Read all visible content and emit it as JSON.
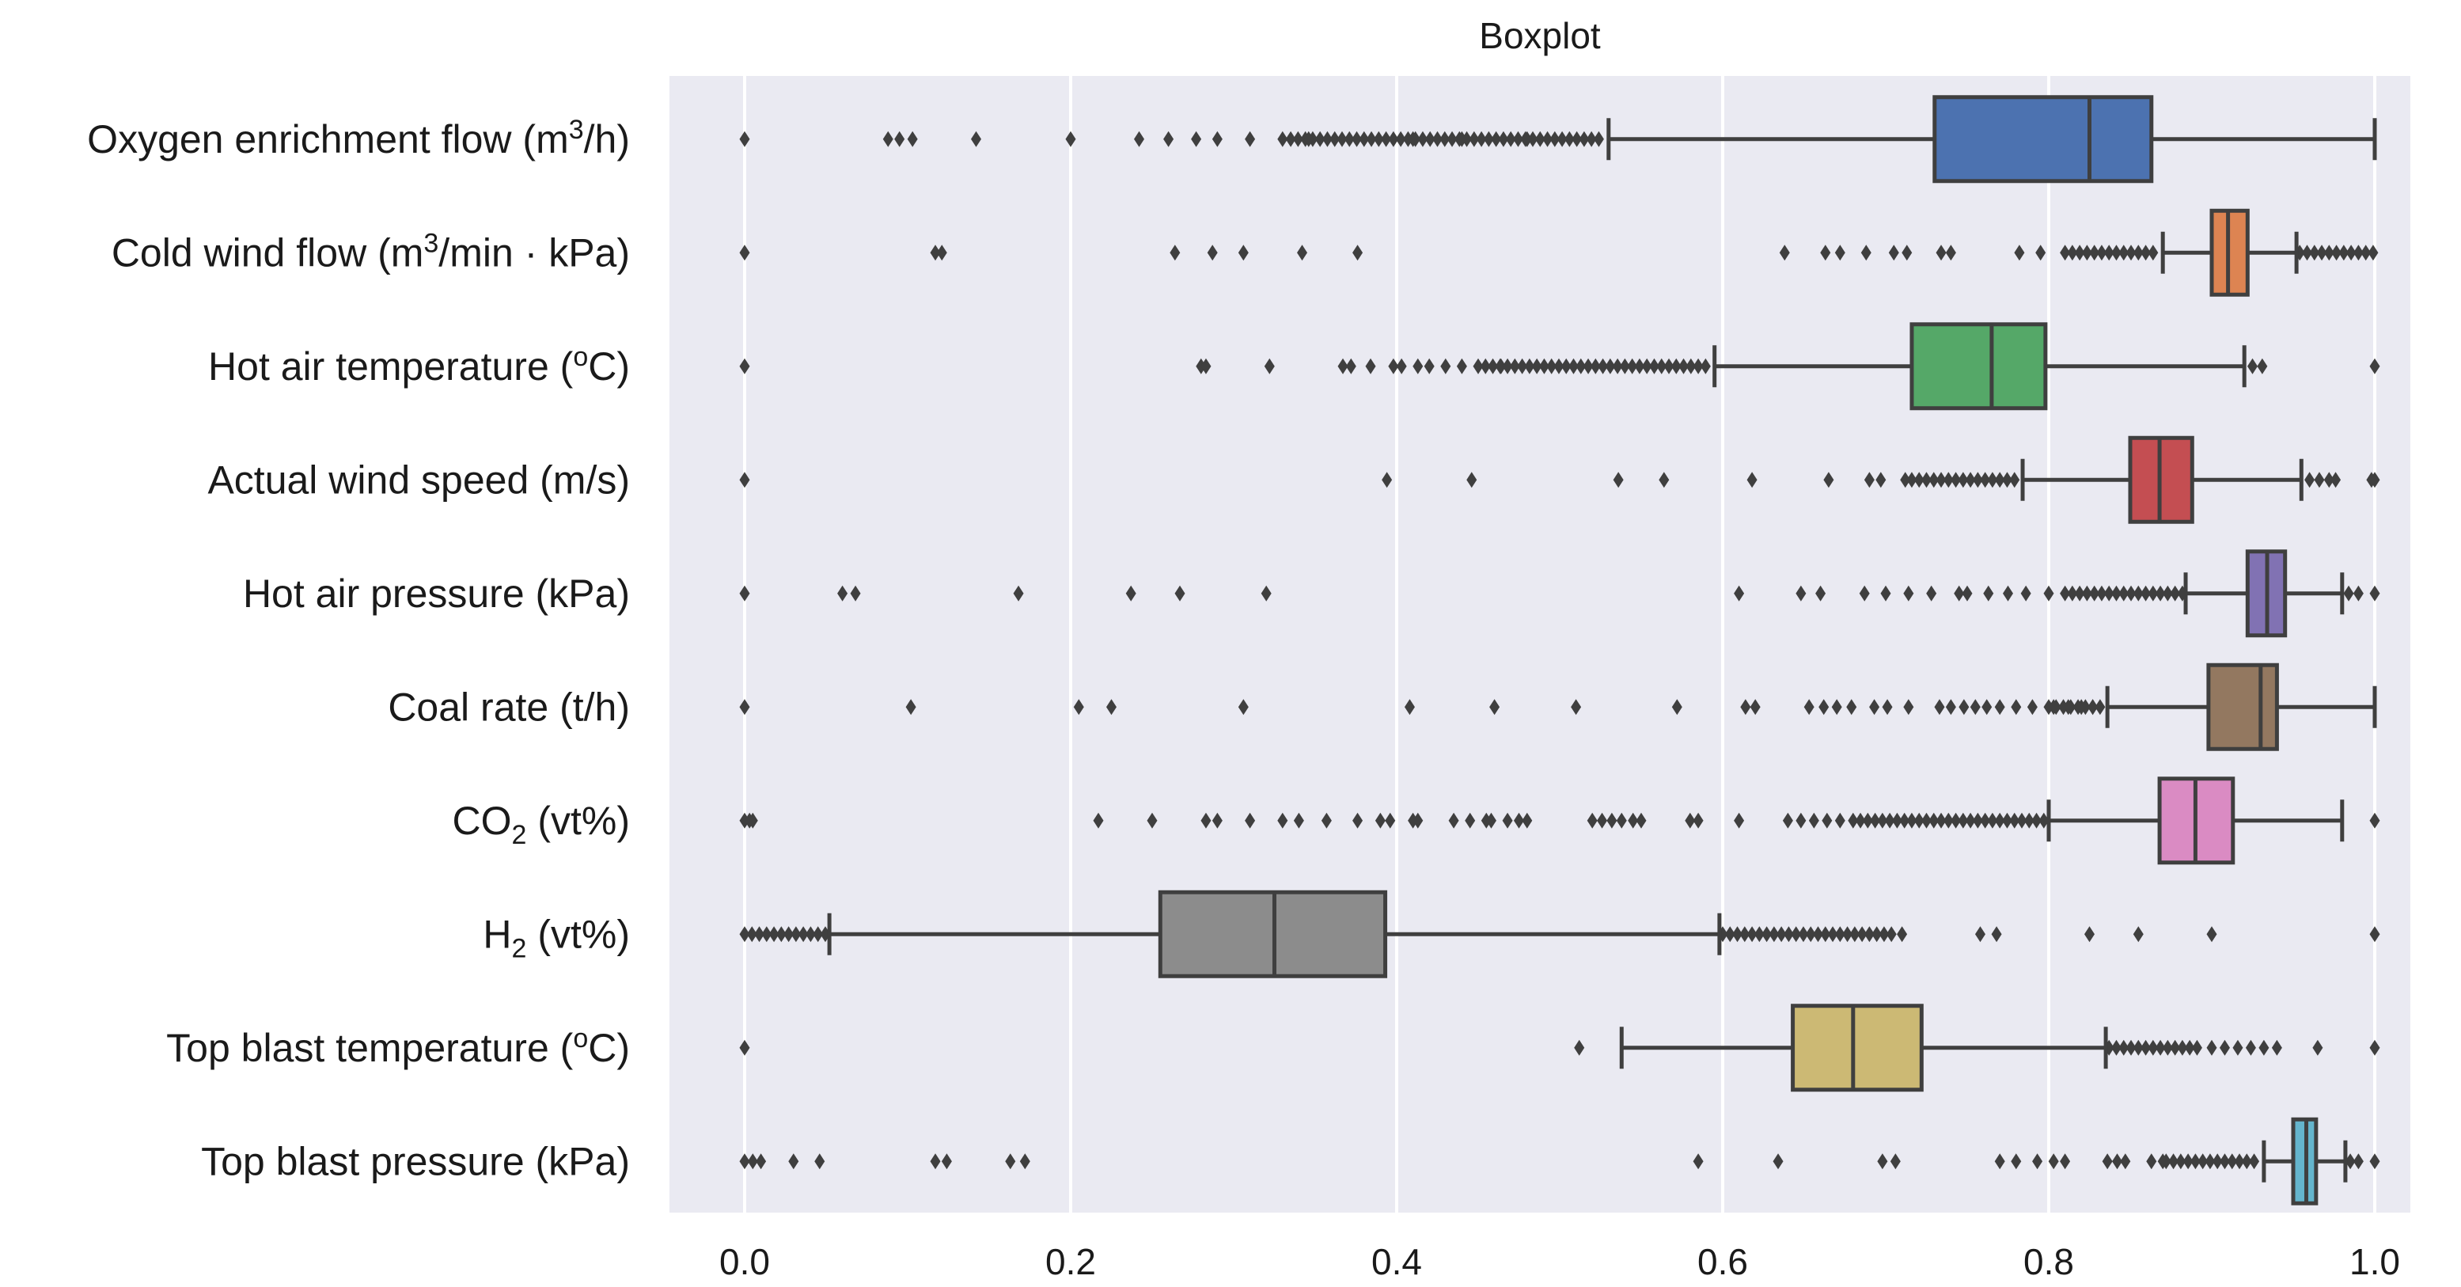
{
  "chart_data": {
    "type": "boxplot",
    "title": "Boxplot",
    "xlim": [
      -0.05,
      1.05
    ],
    "x_ticks": [
      0.0,
      0.2,
      0.4,
      0.6,
      0.8,
      1.0
    ],
    "x_tick_labels": [
      "0.0",
      "0.2",
      "0.4",
      "0.6",
      "0.8",
      "1.0"
    ],
    "grid": "vertical",
    "series": [
      {
        "name": "Oxygen enrichment flow",
        "label_text": "Oxygen enrichment flow (m",
        "label_sup": "3",
        "label_tail": "/h)",
        "color": "#4c72b0",
        "whisker_low": 0.53,
        "q1": 0.73,
        "median": 0.825,
        "q3": 0.863,
        "whisker_high": 1.0,
        "outliers": [
          0.0,
          0.088,
          0.095,
          0.103,
          0.142,
          0.2,
          0.242,
          0.26,
          0.277,
          0.29,
          0.31,
          0.33,
          0.346,
          0.41,
          0.44,
          0.48
        ],
        "outlier_band": [
          0.335,
          0.525
        ]
      },
      {
        "name": "Cold wind flow",
        "label_text": "Cold wind flow (m",
        "label_sup": "3",
        "label_tail": "/min · kPa)",
        "color": "#dd8452",
        "whisker_low": 0.87,
        "q1": 0.9,
        "median": 0.91,
        "q3": 0.922,
        "whisker_high": 0.952,
        "outliers": [
          0.0,
          0.117,
          0.121,
          0.264,
          0.287,
          0.306,
          0.342,
          0.376,
          0.638,
          0.663,
          0.672,
          0.688,
          0.705,
          0.713,
          0.734,
          0.74,
          0.782,
          0.795
        ],
        "outlier_band_low": [
          0.81,
          0.868
        ],
        "outlier_band_high": [
          0.954,
          1.0
        ]
      },
      {
        "name": "Hot air temperature",
        "label_text": "Hot air temperature (",
        "label_sup": "o",
        "label_tail": "C)",
        "color": "#55a868",
        "whisker_low": 0.595,
        "q1": 0.716,
        "median": 0.765,
        "q3": 0.798,
        "whisker_high": 0.92,
        "outliers": [
          0.0,
          0.28,
          0.283,
          0.322,
          0.367,
          0.372,
          0.384,
          0.398,
          0.403,
          0.413,
          0.42,
          0.43,
          0.44,
          0.464,
          0.925,
          0.931,
          1.0
        ],
        "outlier_band": [
          0.45,
          0.593
        ]
      },
      {
        "name": "Actual wind speed",
        "label_text": "Actual wind speed (m/s)",
        "label_sup": "",
        "label_tail": "",
        "color": "#c44e52",
        "whisker_low": 0.784,
        "q1": 0.85,
        "median": 0.868,
        "q3": 0.888,
        "whisker_high": 0.955,
        "outliers": [
          0.0,
          0.394,
          0.446,
          0.536,
          0.564,
          0.618,
          0.665,
          0.69,
          0.697,
          0.712,
          0.96,
          0.966,
          0.972,
          0.976,
          0.998,
          1.0
        ],
        "outlier_band": [
          0.716,
          0.782
        ]
      },
      {
        "name": "Hot air pressure",
        "label_text": "Hot air pressure (kPa)",
        "label_sup": "",
        "label_tail": "",
        "color": "#8172b3",
        "whisker_low": 0.884,
        "q1": 0.922,
        "median": 0.934,
        "q3": 0.945,
        "whisker_high": 0.98,
        "outliers": [
          0.0,
          0.06,
          0.068,
          0.168,
          0.237,
          0.267,
          0.32,
          0.61,
          0.648,
          0.66,
          0.687,
          0.7,
          0.714,
          0.728,
          0.745,
          0.75,
          0.763,
          0.775,
          0.786,
          0.8,
          0.984,
          0.99,
          1.0
        ],
        "outlier_band": [
          0.81,
          0.882
        ]
      },
      {
        "name": "Coal rate",
        "label_text": "Coal rate (t/h)",
        "label_sup": "",
        "label_tail": "",
        "color": "#937860",
        "whisker_low": 0.836,
        "q1": 0.898,
        "median": 0.93,
        "q3": 0.94,
        "whisker_high": 1.0,
        "outliers": [
          0.0,
          0.102,
          0.205,
          0.225,
          0.306,
          0.408,
          0.46,
          0.51,
          0.572,
          0.614,
          0.62,
          0.653,
          0.662,
          0.67,
          0.679,
          0.693,
          0.701,
          0.714,
          0.733,
          0.74,
          0.748,
          0.755,
          0.762,
          0.77,
          0.78,
          0.79,
          0.803,
          0.812,
          0.82,
          0.827
        ],
        "outlier_band": [
          0.8,
          0.832
        ]
      },
      {
        "name": "CO2",
        "label_text": "CO",
        "label_sub": "2",
        "label_tail": " (vt%)",
        "color": "#da8bc3",
        "whisker_low": 0.8,
        "q1": 0.868,
        "median": 0.89,
        "q3": 0.913,
        "whisker_high": 0.98,
        "outliers": [
          0.0,
          0.003,
          0.005,
          0.217,
          0.25,
          0.283,
          0.29,
          0.31,
          0.33,
          0.34,
          0.357,
          0.376,
          0.39,
          0.396,
          0.41,
          0.413,
          0.435,
          0.445,
          0.455,
          0.458,
          0.468,
          0.475,
          0.48,
          0.52,
          0.526,
          0.532,
          0.538,
          0.545,
          0.55,
          0.58,
          0.585,
          0.61,
          0.64,
          0.648,
          0.656,
          0.664,
          0.672,
          1.0
        ],
        "outlier_band": [
          0.68,
          0.798
        ]
      },
      {
        "name": "H2",
        "label_text": "H",
        "label_sub": "2",
        "label_tail": " (vt%)",
        "color": "#8c8c8c",
        "whisker_low": 0.052,
        "q1": 0.255,
        "median": 0.325,
        "q3": 0.393,
        "whisker_high": 0.598,
        "outliers": [
          0.71,
          0.758,
          0.768,
          0.825,
          0.855,
          0.9,
          1.0
        ],
        "outlier_band_low": [
          0.0,
          0.05
        ],
        "outlier_band_high": [
          0.6,
          0.705
        ]
      },
      {
        "name": "Top blast temperature",
        "label_text": "Top blast temperature (",
        "label_sup": "o",
        "label_tail": "C)",
        "color": "#ccb974",
        "whisker_low": 0.538,
        "q1": 0.643,
        "median": 0.68,
        "q3": 0.722,
        "whisker_high": 0.835,
        "outliers": [
          0.0,
          0.512,
          0.9,
          0.908,
          0.916,
          0.924,
          0.932,
          0.94,
          0.965,
          1.0
        ],
        "outlier_band": [
          0.837,
          0.895
        ]
      },
      {
        "name": "Top blast pressure",
        "label_text": "Top blast pressure (kPa)",
        "label_sup": "",
        "label_tail": "",
        "color": "#64b5cd",
        "whisker_low": 0.932,
        "q1": 0.95,
        "median": 0.958,
        "q3": 0.964,
        "whisker_high": 0.982,
        "outliers": [
          0.0,
          0.005,
          0.01,
          0.03,
          0.046,
          0.117,
          0.124,
          0.163,
          0.172,
          0.585,
          0.634,
          0.698,
          0.706,
          0.77,
          0.78,
          0.793,
          0.803,
          0.81,
          0.836,
          0.842,
          0.847,
          0.863,
          0.87,
          0.985,
          0.99,
          1.0
        ],
        "outlier_band": [
          0.872,
          0.928
        ]
      }
    ]
  }
}
